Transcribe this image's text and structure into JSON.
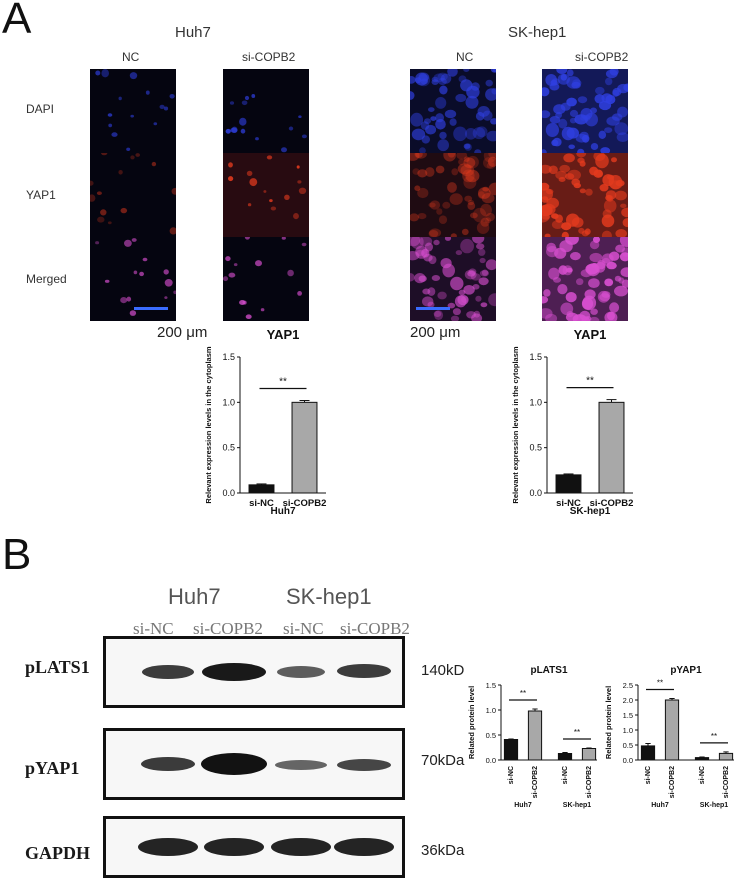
{
  "panel_a": {
    "letter": "A",
    "groups": [
      {
        "cell_line": "Huh7",
        "conditions": [
          "NC",
          "si-COPB2"
        ],
        "scale_bar": "200 μm"
      },
      {
        "cell_line": "SK-hep1",
        "conditions": [
          "NC",
          "si-COPB2"
        ],
        "scale_bar": "200 μm"
      }
    ],
    "rows": [
      "DAPI",
      "YAP1",
      "Merged"
    ],
    "colors": {
      "dapi": "#2f3fe0",
      "yap1": "#e23a1e",
      "merged": "#d84fd0",
      "scale_bar": "#3a6cff"
    }
  },
  "panel_b": {
    "letter": "B",
    "blot_headers": [
      "Huh7",
      "SK-hep1"
    ],
    "lanes": [
      "si-NC",
      "si-COPB2",
      "si-NC",
      "si-COPB2"
    ],
    "proteins": [
      {
        "name": "pLATS1",
        "size": "140kD"
      },
      {
        "name": "pYAP1",
        "size": "70kDa"
      },
      {
        "name": "GAPDH",
        "size": "36kDa"
      }
    ]
  },
  "chart_data": [
    {
      "type": "bar",
      "title": "YAP1",
      "categories": [
        "si-NC",
        "si-COPB2"
      ],
      "values": [
        0.09,
        1.0
      ],
      "errors": [
        0.01,
        0.02
      ],
      "xlabel": "Huh7",
      "ylabel": "Relevant expression levels in the cytoplasm",
      "ylim": [
        0,
        1.5
      ],
      "yticks": [
        "0.0",
        "0.5",
        "1.0",
        "1.5"
      ],
      "significance": "**",
      "colors": [
        "#111111",
        "#a8a8a8"
      ]
    },
    {
      "type": "bar",
      "title": "YAP1",
      "categories": [
        "si-NC",
        "si-COPB2"
      ],
      "values": [
        0.2,
        1.0
      ],
      "errors": [
        0.01,
        0.03
      ],
      "xlabel": "SK-hep1",
      "ylabel": "Relevant expression levels in the cytoplasm",
      "ylim": [
        0,
        1.5
      ],
      "yticks": [
        "0.0",
        "0.5",
        "1.0",
        "1.5"
      ],
      "significance": "**",
      "colors": [
        "#111111",
        "#a8a8a8"
      ]
    },
    {
      "type": "bar",
      "title": "pLATS1",
      "categories": [
        "si-NC",
        "si-COPB2",
        "si-NC",
        "si-COPB2"
      ],
      "groups": [
        "Huh7",
        "SK-hep1"
      ],
      "values": [
        0.41,
        0.98,
        0.13,
        0.23
      ],
      "errors": [
        0.01,
        0.04,
        0.02,
        0.01
      ],
      "ylabel": "Related protein level",
      "ylim": [
        0,
        1.5
      ],
      "yticks": [
        "0.0",
        "0.5",
        "1.0",
        "1.5"
      ],
      "significance": [
        "**",
        "**"
      ],
      "colors": [
        "#111111",
        "#a8a8a8",
        "#111111",
        "#a8a8a8"
      ]
    },
    {
      "type": "bar",
      "title": "pYAP1",
      "categories": [
        "si-NC",
        "si-COPB2",
        "si-NC",
        "si-COPB2"
      ],
      "groups": [
        "Huh7",
        "SK-hep1"
      ],
      "values": [
        0.47,
        2.0,
        0.08,
        0.22
      ],
      "errors": [
        0.08,
        0.05,
        0.02,
        0.05
      ],
      "ylabel": "Related protein level",
      "ylim": [
        0,
        2.5
      ],
      "yticks": [
        "0.0",
        "0.5",
        "1.0",
        "1.5",
        "2.0",
        "2.5"
      ],
      "significance": [
        "**",
        "**"
      ],
      "colors": [
        "#111111",
        "#a8a8a8",
        "#111111",
        "#a8a8a8"
      ]
    }
  ]
}
